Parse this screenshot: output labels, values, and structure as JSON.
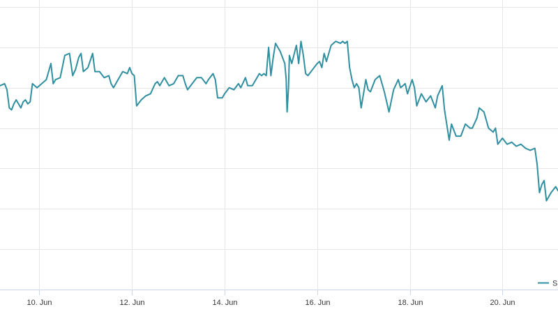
{
  "chart_data": {
    "type": "line",
    "title": "",
    "xlabel": "",
    "ylabel": "",
    "x_ticks": [
      "10. Jun",
      "12. Jun",
      "14. Jun",
      "16. Jun",
      "18. Jun",
      "20. Jun"
    ],
    "x_tick_days": [
      10,
      12,
      14,
      16,
      18,
      20
    ],
    "x_range": [
      9.15,
      21.2
    ],
    "y_range": [
      0,
      7
    ],
    "y_ticks": [
      0,
      1,
      2,
      3,
      4,
      5,
      6,
      7
    ],
    "y_tick_labels_visible": false,
    "grid": true,
    "legend_placement": "bottom-right",
    "series": [
      {
        "name": "S",
        "color": "#2f8fa0",
        "points": [
          [
            9.15,
            5.05
          ],
          [
            9.25,
            5.1
          ],
          [
            9.3,
            4.95
          ],
          [
            9.35,
            4.5
          ],
          [
            9.4,
            4.45
          ],
          [
            9.45,
            4.6
          ],
          [
            9.5,
            4.7
          ],
          [
            9.55,
            4.6
          ],
          [
            9.6,
            4.5
          ],
          [
            9.65,
            4.65
          ],
          [
            9.7,
            4.7
          ],
          [
            9.75,
            4.6
          ],
          [
            9.8,
            4.65
          ],
          [
            9.85,
            5.1
          ],
          [
            9.95,
            5.0
          ],
          [
            10.05,
            5.1
          ],
          [
            10.15,
            5.2
          ],
          [
            10.25,
            5.6
          ],
          [
            10.3,
            5.1
          ],
          [
            10.35,
            5.2
          ],
          [
            10.45,
            5.25
          ],
          [
            10.55,
            5.8
          ],
          [
            10.65,
            5.85
          ],
          [
            10.72,
            5.3
          ],
          [
            10.78,
            5.45
          ],
          [
            10.85,
            5.75
          ],
          [
            10.9,
            5.85
          ],
          [
            10.95,
            5.4
          ],
          [
            11.05,
            5.5
          ],
          [
            11.15,
            5.85
          ],
          [
            11.2,
            5.4
          ],
          [
            11.3,
            5.4
          ],
          [
            11.4,
            5.25
          ],
          [
            11.5,
            5.3
          ],
          [
            11.55,
            5.1
          ],
          [
            11.6,
            5.0
          ],
          [
            11.7,
            5.2
          ],
          [
            11.8,
            5.4
          ],
          [
            11.9,
            5.35
          ],
          [
            11.95,
            5.5
          ],
          [
            12.0,
            5.35
          ],
          [
            12.05,
            5.3
          ],
          [
            12.1,
            4.55
          ],
          [
            12.2,
            4.7
          ],
          [
            12.3,
            4.8
          ],
          [
            12.4,
            4.85
          ],
          [
            12.5,
            5.1
          ],
          [
            12.55,
            5.15
          ],
          [
            12.6,
            5.05
          ],
          [
            12.7,
            5.25
          ],
          [
            12.8,
            5.05
          ],
          [
            12.9,
            5.1
          ],
          [
            13.0,
            5.3
          ],
          [
            13.1,
            5.3
          ],
          [
            13.15,
            5.1
          ],
          [
            13.2,
            4.95
          ],
          [
            13.3,
            5.1
          ],
          [
            13.4,
            5.25
          ],
          [
            13.5,
            5.25
          ],
          [
            13.6,
            5.1
          ],
          [
            13.65,
            5.2
          ],
          [
            13.75,
            5.35
          ],
          [
            13.8,
            5.2
          ],
          [
            13.85,
            4.75
          ],
          [
            13.95,
            4.75
          ],
          [
            14.0,
            4.85
          ],
          [
            14.1,
            5.0
          ],
          [
            14.2,
            4.95
          ],
          [
            14.3,
            5.1
          ],
          [
            14.35,
            5.0
          ],
          [
            14.45,
            5.25
          ],
          [
            14.5,
            5.05
          ],
          [
            14.6,
            5.05
          ],
          [
            14.7,
            5.25
          ],
          [
            14.75,
            5.35
          ],
          [
            14.8,
            5.3
          ],
          [
            14.85,
            5.35
          ],
          [
            14.9,
            5.3
          ],
          [
            14.95,
            6.0
          ],
          [
            15.0,
            5.3
          ],
          [
            15.05,
            5.75
          ],
          [
            15.1,
            6.1
          ],
          [
            15.2,
            5.9
          ],
          [
            15.3,
            5.6
          ],
          [
            15.33,
            5.2
          ],
          [
            15.35,
            4.4
          ],
          [
            15.38,
            5.0
          ],
          [
            15.4,
            5.8
          ],
          [
            15.45,
            5.6
          ],
          [
            15.55,
            6.05
          ],
          [
            15.6,
            5.6
          ],
          [
            15.65,
            6.15
          ],
          [
            15.7,
            5.8
          ],
          [
            15.75,
            5.35
          ],
          [
            15.8,
            5.3
          ],
          [
            15.9,
            5.45
          ],
          [
            16.0,
            5.6
          ],
          [
            16.05,
            5.65
          ],
          [
            16.1,
            5.5
          ],
          [
            16.15,
            5.85
          ],
          [
            16.2,
            5.65
          ],
          [
            16.3,
            6.05
          ],
          [
            16.4,
            6.15
          ],
          [
            16.5,
            6.1
          ],
          [
            16.55,
            6.15
          ],
          [
            16.6,
            6.1
          ],
          [
            16.65,
            6.15
          ],
          [
            16.7,
            5.5
          ],
          [
            16.75,
            5.2
          ],
          [
            16.8,
            5.0
          ],
          [
            16.85,
            5.1
          ],
          [
            16.9,
            5.0
          ],
          [
            16.95,
            4.5
          ],
          [
            17.05,
            5.2
          ],
          [
            17.1,
            4.95
          ],
          [
            17.15,
            4.9
          ],
          [
            17.25,
            5.2
          ],
          [
            17.35,
            5.3
          ],
          [
            17.45,
            4.9
          ],
          [
            17.55,
            4.4
          ],
          [
            17.65,
            4.95
          ],
          [
            17.75,
            5.2
          ],
          [
            17.8,
            5.0
          ],
          [
            17.9,
            5.1
          ],
          [
            17.95,
            4.85
          ],
          [
            18.05,
            5.2
          ],
          [
            18.1,
            5.0
          ],
          [
            18.15,
            4.55
          ],
          [
            18.25,
            4.85
          ],
          [
            18.35,
            4.65
          ],
          [
            18.45,
            4.8
          ],
          [
            18.55,
            4.5
          ],
          [
            18.6,
            4.8
          ],
          [
            18.7,
            5.05
          ],
          [
            18.75,
            4.45
          ],
          [
            18.85,
            3.7
          ],
          [
            18.9,
            4.1
          ],
          [
            19.0,
            3.8
          ],
          [
            19.1,
            3.8
          ],
          [
            19.2,
            4.1
          ],
          [
            19.3,
            4.0
          ],
          [
            19.35,
            4.0
          ],
          [
            19.45,
            4.25
          ],
          [
            19.5,
            4.5
          ],
          [
            19.6,
            4.4
          ],
          [
            19.7,
            4.0
          ],
          [
            19.8,
            3.9
          ],
          [
            19.85,
            4.0
          ],
          [
            19.9,
            3.6
          ],
          [
            20.0,
            3.75
          ],
          [
            20.1,
            3.6
          ],
          [
            20.2,
            3.65
          ],
          [
            20.3,
            3.55
          ],
          [
            20.4,
            3.6
          ],
          [
            20.5,
            3.5
          ],
          [
            20.6,
            3.45
          ],
          [
            20.7,
            3.5
          ],
          [
            20.75,
            3.1
          ],
          [
            20.8,
            2.4
          ],
          [
            20.85,
            2.6
          ],
          [
            20.9,
            2.7
          ],
          [
            20.95,
            2.2
          ],
          [
            21.05,
            2.4
          ],
          [
            21.15,
            2.55
          ],
          [
            21.2,
            2.45
          ]
        ]
      }
    ]
  }
}
